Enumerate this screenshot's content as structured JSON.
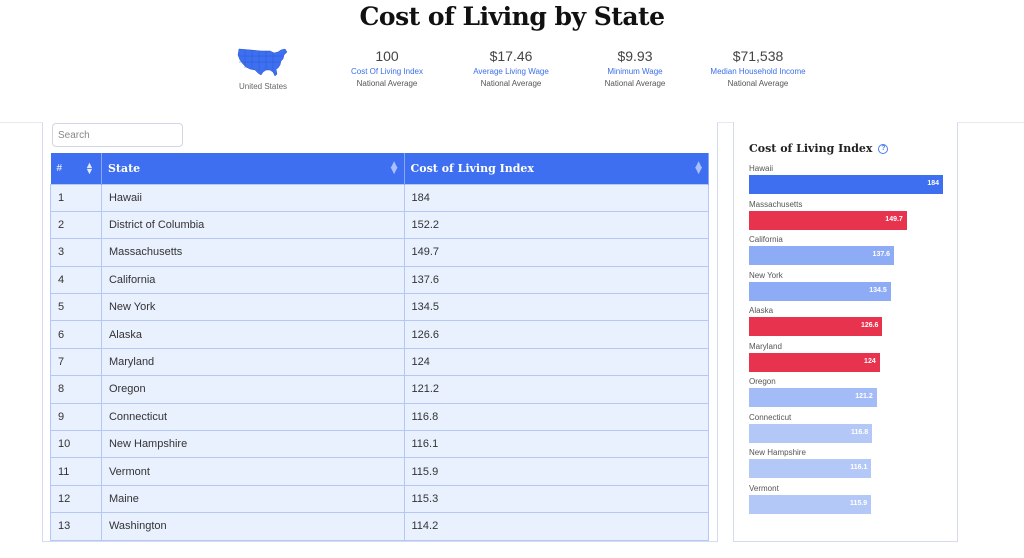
{
  "header": {
    "title": "Cost of Living by State",
    "country_label": "United States",
    "stats": [
      {
        "value": "100",
        "label": "Cost Of Living Index",
        "sub": "National Average"
      },
      {
        "value": "$17.46",
        "label": "Average Living Wage",
        "sub": "National Average"
      },
      {
        "value": "$9.93",
        "label": "Minimum Wage",
        "sub": "National Average"
      },
      {
        "value": "$71,538",
        "label": "Median Household Income",
        "sub": "National Average"
      }
    ]
  },
  "search": {
    "placeholder": "Search"
  },
  "table": {
    "headers": {
      "num": "#",
      "state": "State",
      "index": "Cost of Living Index"
    },
    "rows": [
      {
        "num": "1",
        "state": "Hawaii",
        "index": "184"
      },
      {
        "num": "2",
        "state": "District of Columbia",
        "index": "152.2"
      },
      {
        "num": "3",
        "state": "Massachusetts",
        "index": "149.7"
      },
      {
        "num": "4",
        "state": "California",
        "index": "137.6"
      },
      {
        "num": "5",
        "state": "New York",
        "index": "134.5"
      },
      {
        "num": "6",
        "state": "Alaska",
        "index": "126.6"
      },
      {
        "num": "7",
        "state": "Maryland",
        "index": "124"
      },
      {
        "num": "8",
        "state": "Oregon",
        "index": "121.2"
      },
      {
        "num": "9",
        "state": "Connecticut",
        "index": "116.8"
      },
      {
        "num": "10",
        "state": "New Hampshire",
        "index": "116.1"
      },
      {
        "num": "11",
        "state": "Vermont",
        "index": "115.9"
      },
      {
        "num": "12",
        "state": "Maine",
        "index": "115.3"
      },
      {
        "num": "13",
        "state": "Washington",
        "index": "114.2"
      }
    ]
  },
  "chart_data": {
    "type": "bar",
    "orientation": "horizontal",
    "title": "Cost of Living Index",
    "categories": [
      "Hawaii",
      "Massachusetts",
      "California",
      "New York",
      "Alaska",
      "Maryland",
      "Oregon",
      "Connecticut",
      "New Hampshire",
      "Vermont"
    ],
    "values": [
      184,
      149.7,
      137.6,
      134.5,
      126.6,
      124,
      121.2,
      116.8,
      116.1,
      115.9
    ],
    "value_labels": [
      "184",
      "149.7",
      "137.6",
      "134.5",
      "126.6",
      "124",
      "121.2",
      "116.8",
      "116.1",
      "115.9"
    ],
    "colors": [
      "#3d6ff0",
      "#e8334f",
      "#8eacf5",
      "#8eacf5",
      "#e8334f",
      "#e8334f",
      "#a3bcf7",
      "#b4c8f8",
      "#b4c8f8",
      "#b4c8f8"
    ],
    "xlim": [
      0,
      184
    ]
  },
  "colors": {
    "accent": "#3d6ff0",
    "highlight": "#e8334f",
    "row_bg": "#e9f0fe"
  },
  "icons": {
    "map": "us-map-icon",
    "info": "info-icon",
    "sort": "sort-icon"
  }
}
